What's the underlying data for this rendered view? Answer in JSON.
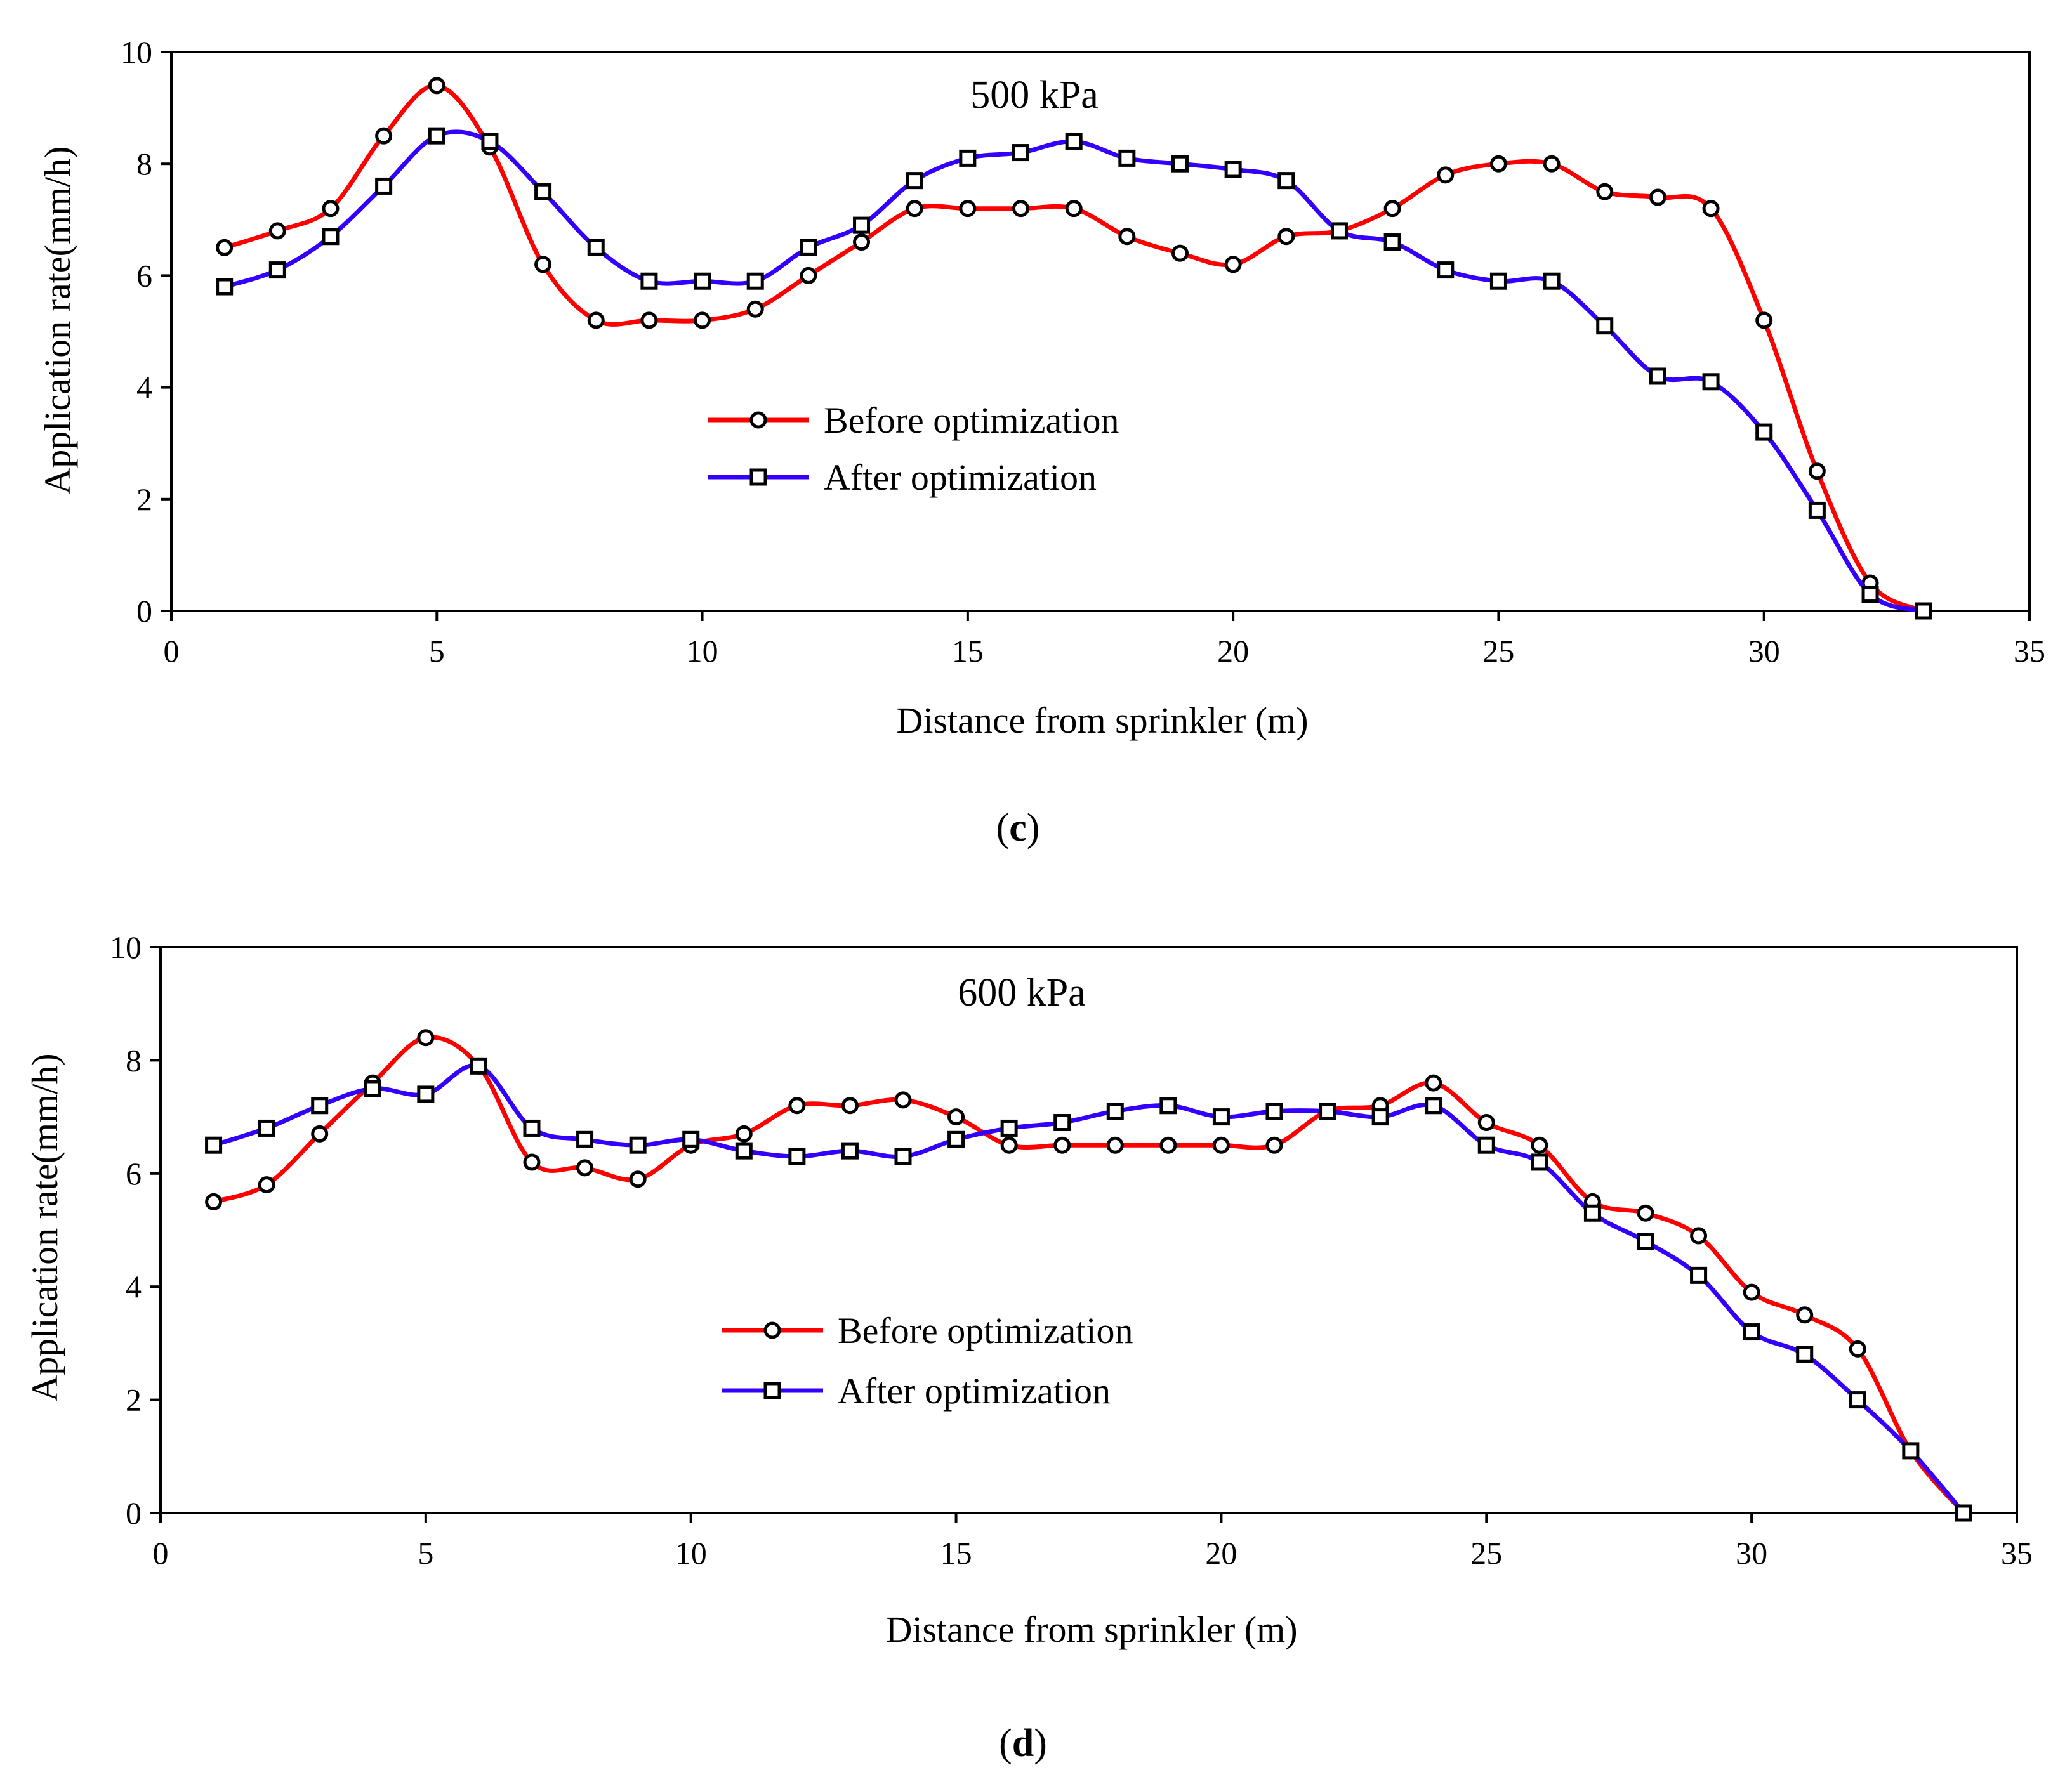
{
  "chart_data": [
    {
      "type": "line",
      "panel_label": "c",
      "title": "500 kPa",
      "xlabel": "Distance from sprinkler (m)",
      "ylabel": "Application rate(mm/h)",
      "xlim": [
        0,
        35
      ],
      "ylim": [
        0,
        10
      ],
      "xticks": [
        0,
        5,
        10,
        15,
        20,
        25,
        30,
        35
      ],
      "yticks": [
        0,
        2,
        4,
        6,
        8,
        10
      ],
      "legend_position": "center",
      "x": [
        1,
        2,
        3,
        4,
        5,
        6,
        7,
        8,
        9,
        10,
        11,
        12,
        13,
        14,
        15,
        16,
        17,
        18,
        19,
        20,
        21,
        22,
        23,
        24,
        25,
        26,
        27,
        28,
        29,
        30,
        31,
        32,
        33
      ],
      "series": [
        {
          "name": "Before optimization",
          "color": "#ff0000",
          "marker": "circle",
          "values": [
            6.5,
            6.8,
            7.2,
            8.5,
            9.4,
            8.3,
            6.2,
            5.2,
            5.2,
            5.2,
            5.4,
            6.0,
            6.6,
            7.2,
            7.2,
            7.2,
            7.2,
            6.7,
            6.4,
            6.2,
            6.7,
            6.8,
            7.2,
            7.8,
            8.0,
            8.0,
            7.5,
            7.4,
            7.2,
            5.2,
            2.5,
            0.5,
            0.0
          ]
        },
        {
          "name": "After optimization",
          "color": "#3300ff",
          "marker": "square",
          "values": [
            5.8,
            6.1,
            6.7,
            7.6,
            8.5,
            8.4,
            7.5,
            6.5,
            5.9,
            5.9,
            5.9,
            6.5,
            6.9,
            7.7,
            8.1,
            8.2,
            8.4,
            8.1,
            8.0,
            7.9,
            7.7,
            6.8,
            6.6,
            6.1,
            5.9,
            5.9,
            5.1,
            4.2,
            4.1,
            3.2,
            1.8,
            0.3,
            0.0
          ]
        }
      ]
    },
    {
      "type": "line",
      "panel_label": "d",
      "title": "600 kPa",
      "xlabel": "Distance from sprinkler (m)",
      "ylabel": "Application rate(mm/h)",
      "xlim": [
        0,
        35
      ],
      "ylim": [
        0,
        10
      ],
      "xticks": [
        0,
        5,
        10,
        15,
        20,
        25,
        30,
        35
      ],
      "yticks": [
        0,
        2,
        4,
        6,
        8,
        10
      ],
      "legend_position": "center",
      "x": [
        1,
        2,
        3,
        4,
        5,
        6,
        7,
        8,
        9,
        10,
        11,
        12,
        13,
        14,
        15,
        16,
        17,
        18,
        19,
        20,
        21,
        22,
        23,
        24,
        25,
        26,
        27,
        28,
        29,
        30,
        31,
        32,
        33,
        34
      ],
      "series": [
        {
          "name": "Before optimization",
          "color": "#ff0000",
          "marker": "circle",
          "values": [
            5.5,
            5.8,
            6.7,
            7.6,
            8.4,
            7.9,
            6.2,
            6.1,
            5.9,
            6.5,
            6.7,
            7.2,
            7.2,
            7.3,
            7.0,
            6.5,
            6.5,
            6.5,
            6.5,
            6.5,
            6.5,
            7.1,
            7.2,
            7.6,
            6.9,
            6.5,
            5.5,
            5.3,
            4.9,
            3.9,
            3.5,
            2.9,
            1.1,
            0.0
          ]
        },
        {
          "name": "After optimization",
          "color": "#3300ff",
          "marker": "square",
          "values": [
            6.5,
            6.8,
            7.2,
            7.5,
            7.4,
            7.9,
            6.8,
            6.6,
            6.5,
            6.6,
            6.4,
            6.3,
            6.4,
            6.3,
            6.6,
            6.8,
            6.9,
            7.1,
            7.2,
            7.0,
            7.1,
            7.1,
            7.0,
            7.2,
            6.5,
            6.2,
            5.3,
            4.8,
            4.2,
            3.2,
            2.8,
            2.0,
            1.1,
            0.0
          ]
        }
      ]
    }
  ]
}
